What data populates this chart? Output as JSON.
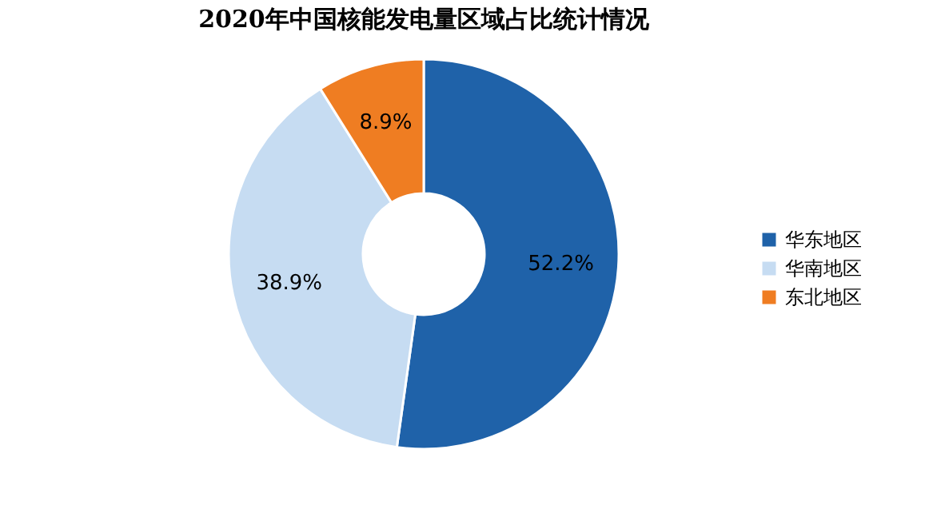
{
  "chart_data": {
    "type": "donut",
    "title": "2020年中国核能发电量区域占比统计情况",
    "categories": [
      "华东地区",
      "华南地区",
      "东北地区"
    ],
    "values": [
      52.2,
      38.9,
      8.9
    ],
    "colors": [
      "#1f62a9",
      "#c6dcf2",
      "#ef7d22"
    ],
    "value_labels": [
      "52.2%",
      "38.9%",
      "8.9%"
    ],
    "legend": "right"
  }
}
